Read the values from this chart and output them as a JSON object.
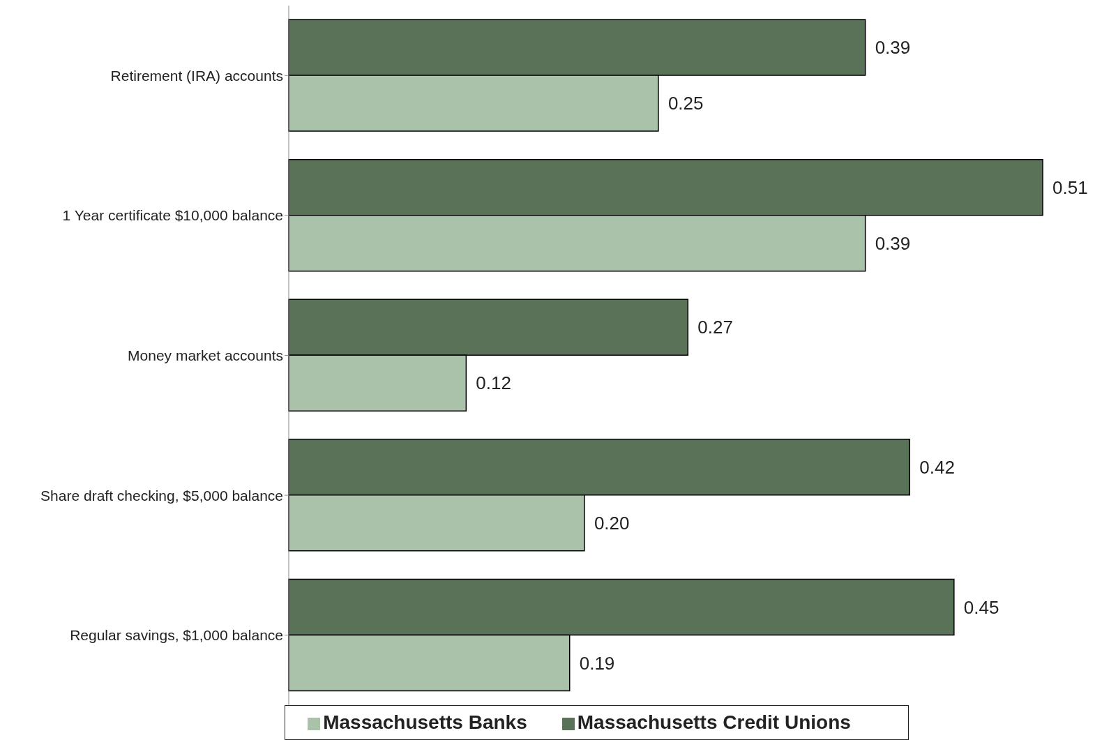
{
  "chart_data": {
    "type": "bar",
    "orientation": "horizontal",
    "categories": [
      "Retirement (IRA) accounts",
      "1 Year certificate $10,000 balance",
      "Money market accounts",
      "Share draft checking, $5,000 balance",
      "Regular savings, $1,000 balance"
    ],
    "series": [
      {
        "name": "Massachusetts Credit Unions",
        "color": "#5a7358",
        "values": [
          0.39,
          0.51,
          0.27,
          0.42,
          0.45
        ],
        "value_labels": [
          "0.39",
          "0.51",
          "0.27",
          "0.42",
          "0.45"
        ]
      },
      {
        "name": "Massachusetts Banks",
        "color": "#a9c2a9",
        "values": [
          0.25,
          0.39,
          0.12,
          0.2,
          0.19
        ],
        "value_labels": [
          "0.25",
          "0.39",
          "0.12",
          "0.20",
          "0.19"
        ]
      }
    ],
    "legend": "bottom"
  }
}
